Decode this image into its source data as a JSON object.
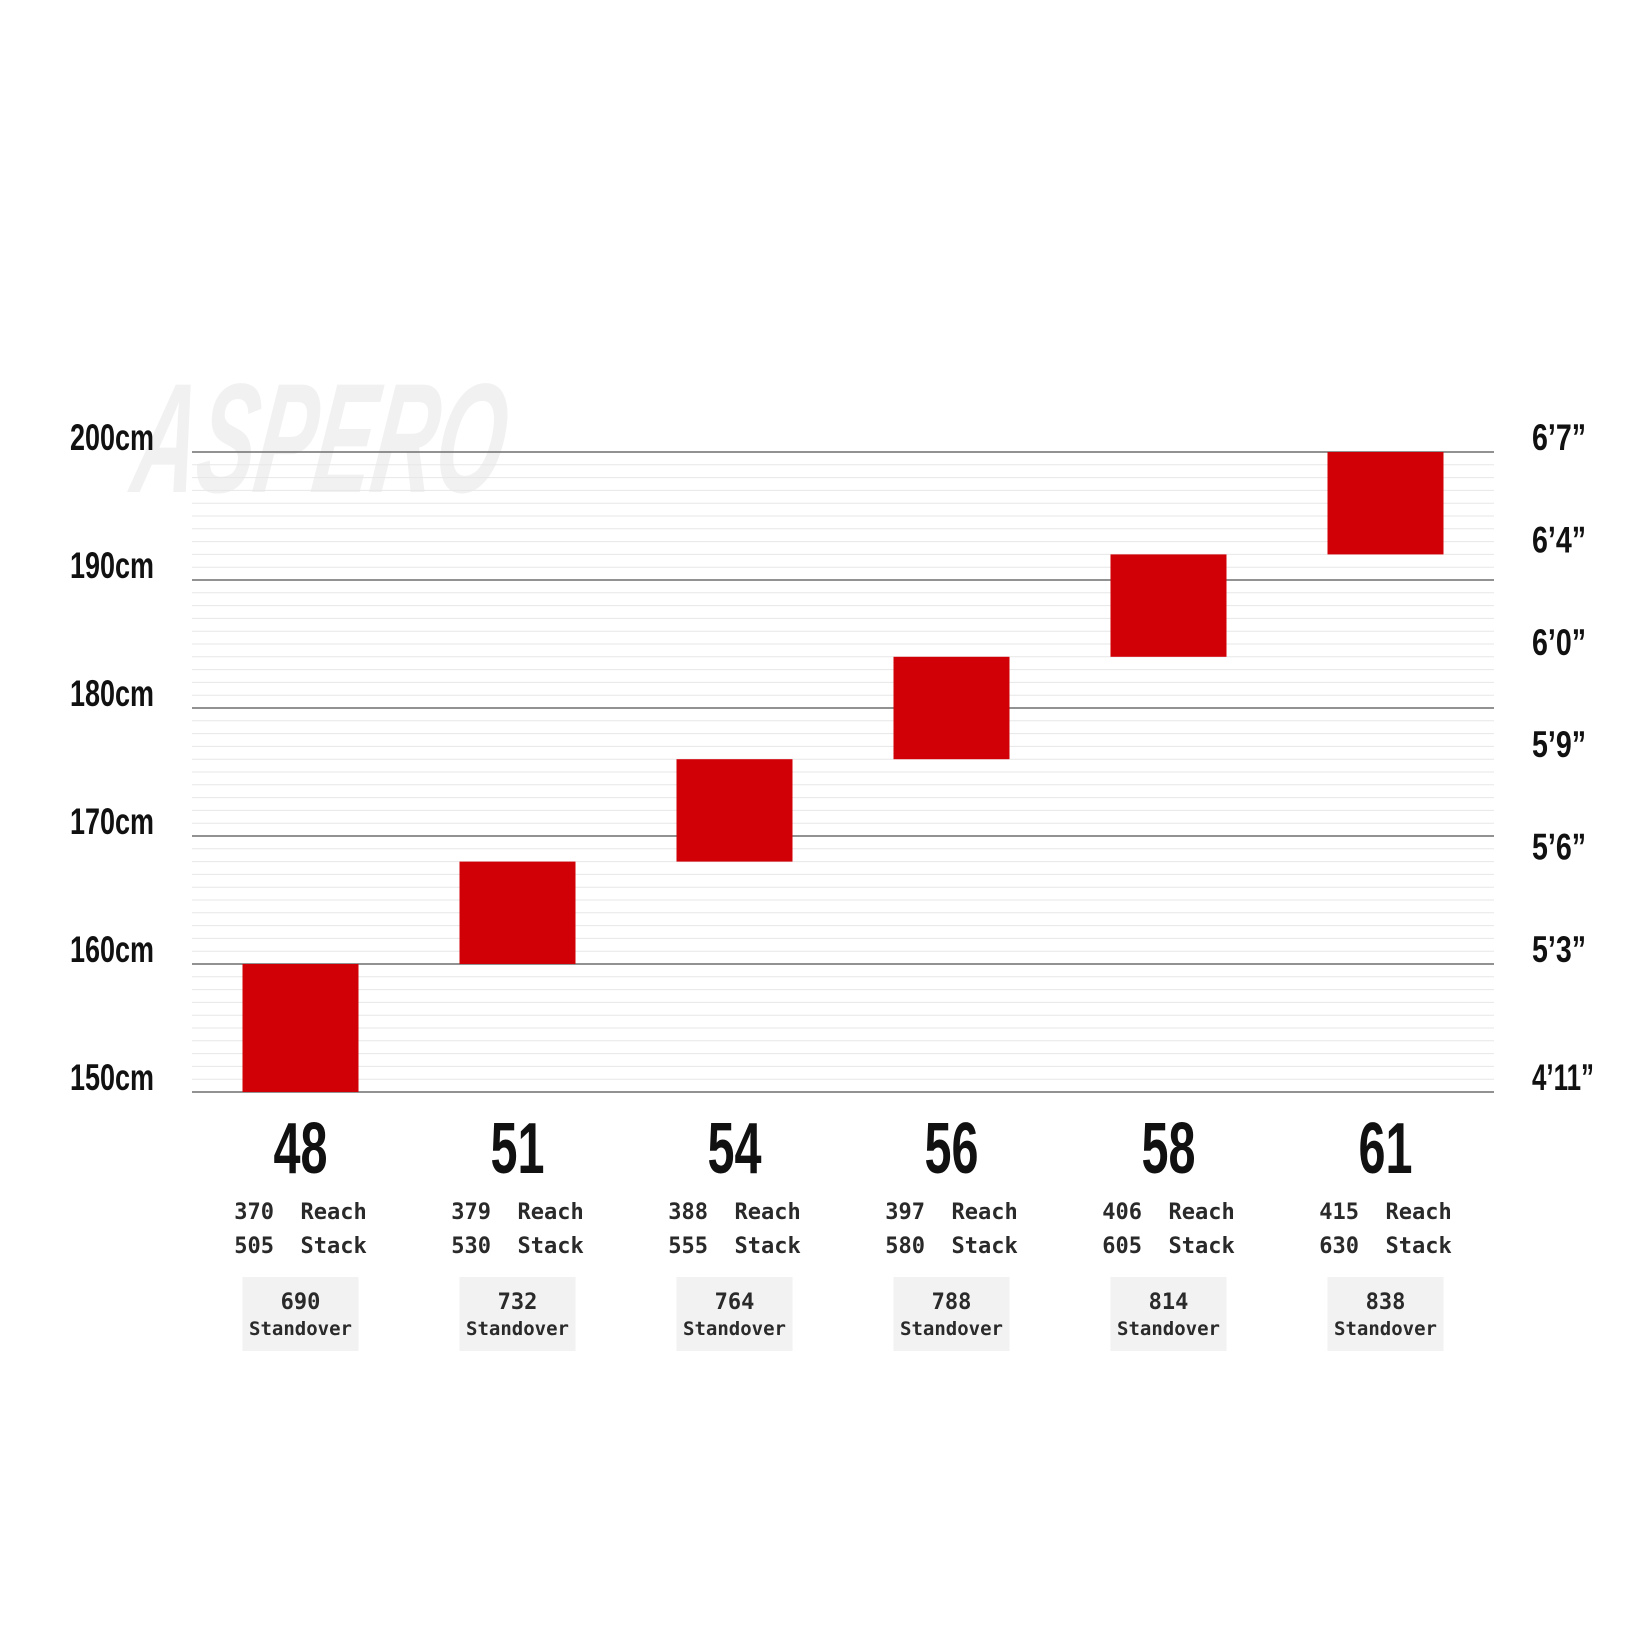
{
  "chart_data": {
    "type": "bar",
    "title": "",
    "watermark": "ASPERO",
    "xlabel": "",
    "ylabel": "",
    "ylim": [
      150,
      200
    ],
    "yticks": [
      150,
      160,
      170,
      180,
      190,
      200
    ],
    "ytick_labels": [
      "150cm",
      "160cm",
      "170cm",
      "180cm",
      "190cm",
      "200cm"
    ],
    "right_ticks": [
      {
        "value": 150,
        "label": "4’11”"
      },
      {
        "value": 160,
        "label": "5’3”"
      },
      {
        "value": 168,
        "label": "5’6”"
      },
      {
        "value": 176,
        "label": "5’9”"
      },
      {
        "value": 184,
        "label": "6’0”"
      },
      {
        "value": 192,
        "label": "6’4”"
      },
      {
        "value": 200,
        "label": "6’7”"
      }
    ],
    "categories": [
      "48",
      "51",
      "54",
      "56",
      "58",
      "61"
    ],
    "ranges": [
      [
        150,
        160
      ],
      [
        160,
        168
      ],
      [
        168,
        176
      ],
      [
        176,
        184
      ],
      [
        184,
        192
      ],
      [
        192,
        200
      ]
    ],
    "specs": [
      {
        "reach": "370",
        "stack": "505",
        "standover": "690"
      },
      {
        "reach": "379",
        "stack": "530",
        "standover": "732"
      },
      {
        "reach": "388",
        "stack": "555",
        "standover": "764"
      },
      {
        "reach": "397",
        "stack": "580",
        "standover": "788"
      },
      {
        "reach": "406",
        "stack": "605",
        "standover": "814"
      },
      {
        "reach": "415",
        "stack": "630",
        "standover": "838"
      }
    ],
    "labels": {
      "reach": "Reach",
      "stack": "Stack",
      "standover": "Standover"
    },
    "colors": {
      "bar": "#d10006",
      "major_grid": "#6f6f6f",
      "minor_grid": "#e7e7e7",
      "spec_box": "#f2f2f2",
      "text": "#111111"
    },
    "grid": true
  }
}
